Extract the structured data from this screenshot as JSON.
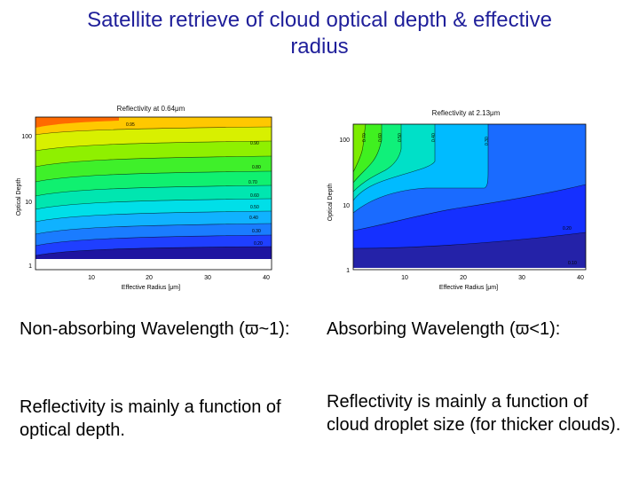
{
  "title": {
    "line1": "Satellite retrieve of cloud optical depth & effective",
    "line2": "radius"
  },
  "plots": {
    "left": {
      "title": "Reflectivity at 0.64μm",
      "xlabel": "Effective Radius [μm]",
      "ylabel": "Optical Depth",
      "x_ticks": [
        "10",
        "20",
        "30",
        "40"
      ],
      "y_ticks": [
        "100",
        "10",
        "1"
      ],
      "contour_labels": [
        "0.95",
        "0.90",
        "0.80",
        "0.70",
        "0.60",
        "0.50",
        "0.40",
        "0.30",
        "0.20"
      ]
    },
    "right": {
      "title": "Reflectivity at 2.13μm",
      "xlabel": "Effective Radius [μm]",
      "ylabel": "Optical Depth",
      "x_ticks": [
        "10",
        "20",
        "30",
        "40"
      ],
      "y_ticks": [
        "100",
        "10",
        "1"
      ],
      "contour_labels_top": [
        "0.70",
        "0.60",
        "0.50",
        "0.40",
        "0.30"
      ],
      "contour_labels_bottom": [
        "0.20",
        "0.10"
      ]
    }
  },
  "captions": {
    "left_heading": "Non-absorbing Wavelength (ϖ~1):",
    "right_heading": "Absorbing Wavelength (ϖ<1):",
    "left_body": "Reflectivity is mainly a function of optical depth.",
    "right_body": "Reflectivity is mainly a function of cloud droplet size (for thicker clouds)."
  }
}
